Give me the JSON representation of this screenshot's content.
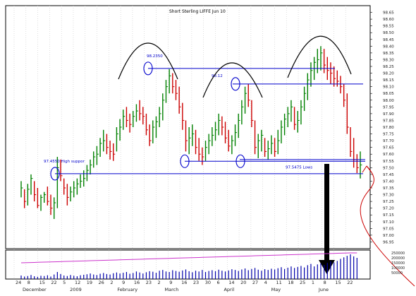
{
  "chart_data": {
    "type": "ohlc",
    "title": "Short Sterling LIFFE Jun 10",
    "ylim": [
      96.9,
      98.7
    ],
    "y_ticks": [
      98.65,
      98.6,
      98.55,
      98.5,
      98.45,
      98.4,
      98.35,
      98.3,
      98.25,
      98.2,
      98.15,
      98.1,
      98.05,
      98.0,
      97.95,
      97.9,
      97.85,
      97.8,
      97.75,
      97.7,
      97.65,
      97.6,
      97.55,
      97.5,
      97.45,
      97.4,
      97.35,
      97.3,
      97.25,
      97.2,
      97.15,
      97.1,
      97.05,
      97.0,
      96.95
    ],
    "x_ticks": [
      "24",
      "8",
      "15",
      "22",
      "5",
      "12",
      "19",
      "26",
      "2",
      "9",
      "16",
      "23",
      "2",
      "9",
      "16",
      "23",
      "30",
      "6",
      "14",
      "20",
      "27",
      "4",
      "11",
      "18",
      "25",
      "1",
      "8",
      "15",
      "22"
    ],
    "month_labels": [
      "December",
      "2009",
      "February",
      "March",
      "April",
      "May",
      "June"
    ],
    "bars": [
      [
        97.4,
        97.28,
        97.35
      ],
      [
        97.34,
        97.2,
        97.25
      ],
      [
        97.38,
        97.22,
        97.34
      ],
      [
        97.45,
        97.3,
        97.42
      ],
      [
        97.4,
        97.25,
        97.3
      ],
      [
        97.35,
        97.2,
        97.22
      ],
      [
        97.3,
        97.18,
        97.28
      ],
      [
        97.32,
        97.24,
        97.3
      ],
      [
        97.36,
        97.22,
        97.25
      ],
      [
        97.3,
        97.15,
        97.2
      ],
      [
        97.28,
        97.12,
        97.24
      ],
      [
        97.58,
        97.2,
        97.5
      ],
      [
        97.56,
        97.4,
        97.44
      ],
      [
        97.42,
        97.3,
        97.35
      ],
      [
        97.38,
        97.22,
        97.28
      ],
      [
        97.36,
        97.25,
        97.32
      ],
      [
        97.4,
        97.28,
        97.35
      ],
      [
        97.42,
        97.3,
        97.38
      ],
      [
        97.45,
        97.35,
        97.4
      ],
      [
        97.48,
        97.36,
        97.42
      ],
      [
        97.52,
        97.4,
        97.48
      ],
      [
        97.56,
        97.45,
        97.52
      ],
      [
        97.62,
        97.5,
        97.58
      ],
      [
        97.66,
        97.52,
        97.6
      ],
      [
        97.72,
        97.58,
        97.68
      ],
      [
        97.78,
        97.62,
        97.7
      ],
      [
        97.75,
        97.6,
        97.65
      ],
      [
        97.7,
        97.56,
        97.62
      ],
      [
        97.68,
        97.55,
        97.6
      ],
      [
        97.8,
        97.62,
        97.75
      ],
      [
        97.86,
        97.7,
        97.8
      ],
      [
        97.93,
        97.78,
        97.88
      ],
      [
        97.95,
        97.8,
        97.85
      ],
      [
        97.9,
        97.76,
        97.82
      ],
      [
        97.92,
        97.8,
        97.88
      ],
      [
        97.97,
        97.84,
        97.92
      ],
      [
        98.0,
        97.85,
        97.9
      ],
      [
        97.95,
        97.82,
        97.88
      ],
      [
        97.9,
        97.74,
        97.78
      ],
      [
        97.82,
        97.66,
        97.7
      ],
      [
        97.85,
        97.68,
        97.8
      ],
      [
        97.88,
        97.72,
        97.84
      ],
      [
        97.95,
        97.8,
        97.9
      ],
      [
        98.05,
        97.85,
        98.0
      ],
      [
        98.15,
        97.98,
        98.1
      ],
      [
        98.23,
        98.05,
        98.18
      ],
      [
        98.2,
        98.05,
        98.1
      ],
      [
        98.15,
        98.0,
        98.05
      ],
      [
        98.1,
        97.9,
        97.95
      ],
      [
        97.98,
        97.78,
        97.85
      ],
      [
        97.85,
        97.62,
        97.7
      ],
      [
        97.8,
        97.6,
        97.72
      ],
      [
        97.82,
        97.66,
        97.75
      ],
      [
        97.78,
        97.6,
        97.65
      ],
      [
        97.72,
        97.55,
        97.6
      ],
      [
        97.65,
        97.52,
        97.58
      ],
      [
        97.7,
        97.55,
        97.65
      ],
      [
        97.75,
        97.6,
        97.7
      ],
      [
        97.8,
        97.66,
        97.74
      ],
      [
        97.84,
        97.7,
        97.78
      ],
      [
        97.9,
        97.74,
        97.85
      ],
      [
        97.88,
        97.74,
        97.8
      ],
      [
        97.84,
        97.68,
        97.72
      ],
      [
        97.78,
        97.62,
        97.66
      ],
      [
        97.74,
        97.6,
        97.7
      ],
      [
        97.82,
        97.66,
        97.76
      ],
      [
        97.9,
        97.72,
        97.85
      ],
      [
        98.0,
        97.82,
        97.95
      ],
      [
        98.1,
        97.9,
        98.05
      ],
      [
        98.12,
        97.95,
        98.0
      ],
      [
        98.0,
        97.8,
        97.85
      ],
      [
        97.85,
        97.6,
        97.65
      ],
      [
        97.75,
        97.57,
        97.7
      ],
      [
        97.78,
        97.62,
        97.74
      ],
      [
        97.72,
        97.58,
        97.62
      ],
      [
        97.7,
        97.56,
        97.64
      ],
      [
        97.74,
        97.6,
        97.68
      ],
      [
        97.72,
        97.58,
        97.62
      ],
      [
        97.78,
        97.6,
        97.7
      ],
      [
        97.85,
        97.68,
        97.8
      ],
      [
        97.9,
        97.74,
        97.86
      ],
      [
        97.95,
        97.8,
        97.9
      ],
      [
        98.0,
        97.84,
        97.95
      ],
      [
        97.95,
        97.78,
        97.82
      ],
      [
        97.92,
        97.76,
        97.85
      ],
      [
        98.0,
        97.82,
        97.95
      ],
      [
        98.1,
        97.92,
        98.05
      ],
      [
        98.2,
        98.0,
        98.15
      ],
      [
        98.28,
        98.1,
        98.22
      ],
      [
        98.32,
        98.15,
        98.28
      ],
      [
        98.38,
        98.2,
        98.3
      ],
      [
        98.4,
        98.22,
        98.35
      ],
      [
        98.38,
        98.2,
        98.26
      ],
      [
        98.32,
        98.15,
        98.22
      ],
      [
        98.28,
        98.12,
        98.2
      ],
      [
        98.25,
        98.1,
        98.16
      ],
      [
        98.22,
        98.1,
        98.14
      ],
      [
        98.18,
        98.05,
        98.1
      ],
      [
        98.12,
        97.95,
        98.0
      ],
      [
        98.05,
        97.75,
        97.8
      ],
      [
        97.8,
        97.58,
        97.62
      ],
      [
        97.72,
        97.5,
        97.56
      ],
      [
        97.6,
        97.46,
        97.5
      ],
      [
        97.62,
        97.42,
        97.52
      ]
    ],
    "volume": [
      14,
      10,
      12,
      16,
      11,
      9,
      13,
      12,
      15,
      10,
      18,
      28,
      20,
      14,
      12,
      16,
      13,
      11,
      15,
      17,
      19,
      22,
      18,
      16,
      21,
      24,
      20,
      18,
      23,
      26,
      22,
      25,
      28,
      21,
      24,
      30,
      26,
      22,
      27,
      31,
      29,
      25,
      33,
      36,
      30,
      28,
      35,
      32,
      29,
      34,
      38,
      31,
      27,
      33,
      30,
      36,
      28,
      32,
      35,
      31,
      37,
      33,
      30,
      34,
      39,
      36,
      32,
      38,
      42,
      35,
      40,
      44,
      37,
      33,
      39,
      36,
      41,
      38,
      43,
      47,
      40,
      45,
      50,
      44,
      48,
      52,
      46,
      55,
      60,
      50,
      58,
      62,
      56,
      64,
      70,
      66,
      72,
      80,
      86,
      92,
      98,
      90,
      84
    ],
    "volume_labels": [
      "250000",
      "200000",
      "150000",
      "100000",
      "50000"
    ],
    "horizontal_levels": [
      {
        "label": "98.2350",
        "value": 98.235
      },
      {
        "label": "98.12",
        "value": 98.12
      },
      {
        "label": "97.5475 Lows",
        "value": 97.5475
      },
      {
        "label": "97.4550 High suppor",
        "value": 97.455
      }
    ]
  }
}
